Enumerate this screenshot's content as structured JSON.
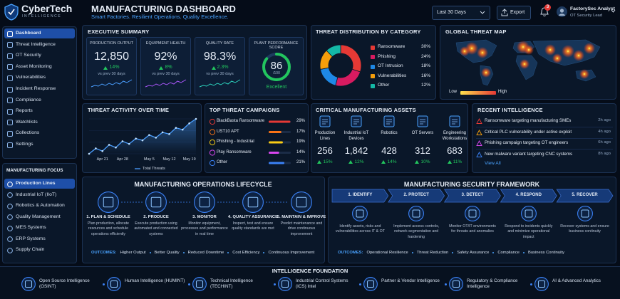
{
  "brand": {
    "name": "CyberTech",
    "tagline": "INTELLIGENCE"
  },
  "header": {
    "title": "MANUFACTURING DASHBOARD",
    "subtitle": "Smart Factories. Resilient Operations. Quality Excellence.",
    "range": "Last 30 Days",
    "export": "Export",
    "notifications": "3",
    "user_name": "FactorySec Analyst",
    "user_role": "OT Security Lead"
  },
  "nav": {
    "items": [
      "Dashboard",
      "Threat Intelligence",
      "OT Security",
      "Asset Monitoring",
      "Vulnerabilities",
      "Incident Response",
      "Compliance",
      "Reports",
      "Watchlists",
      "Collections",
      "Settings"
    ],
    "focus_title": "MANUFACTURING FOCUS",
    "focus_items": [
      "Production Lines",
      "Industrial IoT (IIoT)",
      "Robotics & Automation",
      "Quality Management",
      "MES Systems",
      "ERP Systems",
      "Supply Chain"
    ]
  },
  "executive_summary": {
    "title": "EXECUTIVE SUMMARY",
    "kpis": [
      {
        "label": "PRODUCTION OUTPUT",
        "value": "12,850",
        "change": "14%",
        "compare": "vs prev 30 days"
      },
      {
        "label": "EQUIPMENT HEALTH",
        "value": "92%",
        "change": "8%",
        "compare": "vs prev 30 days"
      },
      {
        "label": "QUALITY RATE",
        "value": "98.3%",
        "change": "2.3%",
        "compare": "vs prev 30 days"
      }
    ],
    "score": {
      "label": "PLANT PERFORMANCE SCORE",
      "value": 86,
      "max": 100,
      "max_label": "/100",
      "rating": "Excellent"
    }
  },
  "threat_distribution": {
    "title": "THREAT DISTRIBUTION BY CATEGORY",
    "type": "pie",
    "categories": [
      "Ransomware",
      "Phishing",
      "OT Intrusion",
      "Vulnerabilities",
      "Other"
    ],
    "values": [
      30,
      24,
      18,
      16,
      12
    ],
    "value_labels": [
      "30%",
      "24%",
      "18%",
      "16%",
      "12%"
    ],
    "colors": [
      "#e53935",
      "#d81b60",
      "#1e88e5",
      "#f59e0b",
      "#14b8a6"
    ]
  },
  "threat_map": {
    "title": "GLOBAL THREAT MAP",
    "legend_low": "Low",
    "legend_high": "High"
  },
  "threat_activity": {
    "title": "THREAT ACTIVITY OVER TIME",
    "type": "line",
    "categories": [
      null,
      null,
      "Apr 21",
      null,
      null,
      "Apr 28",
      null,
      null,
      null,
      "May 5",
      null,
      null,
      "May 12",
      null,
      null,
      "May 19",
      null
    ],
    "series": [
      {
        "name": "Total Threats",
        "color": "#4a9eff",
        "values": [
          14,
          20,
          17,
          24,
          21,
          28,
          25,
          31,
          29,
          35,
          32,
          38,
          36,
          43,
          41,
          48,
          53
        ]
      }
    ]
  },
  "campaigns": {
    "title": "TOP THREAT CAMPAIGNS",
    "type": "bar",
    "categories": [
      "BlackBasta Ransomware",
      "UST10 APT",
      "Phishing - Industrial",
      "Play Ransomware",
      "Other"
    ],
    "values": [
      29,
      17,
      19,
      14,
      21
    ],
    "value_labels": [
      "29%",
      "17%",
      "19%",
      "14%",
      "21%"
    ],
    "colors": [
      "#e53935",
      "#f97316",
      "#facc15",
      "#d946ef",
      "#3b82f6"
    ]
  },
  "assets": {
    "title": "CRITICAL MANUFACTURING ASSETS",
    "items": [
      {
        "name": "Production Lines",
        "count": "256",
        "change": "15%"
      },
      {
        "name": "Industrial IoT Devices",
        "count": "1,842",
        "change": "12%"
      },
      {
        "name": "Robotics",
        "count": "428",
        "change": "14%"
      },
      {
        "name": "OT Servers",
        "count": "312",
        "change": "10%"
      },
      {
        "name": "Engineering Workstations",
        "count": "683",
        "change": "11%"
      }
    ]
  },
  "recent_intelligence": {
    "title": "RECENT INTELLIGENCE",
    "items": [
      {
        "text": "Ransomware targeting manufacturing SMEs",
        "time": "2h ago"
      },
      {
        "text": "Critical PLC vulnerability under active exploit",
        "time": "4h ago"
      },
      {
        "text": "Phishing campaign targeting OT engineers",
        "time": "6h ago"
      },
      {
        "text": "New malware variant targeting CNC systems",
        "time": "8h ago"
      }
    ],
    "link": "View All"
  },
  "lifecycle": {
    "title": "MANUFACTURING OPERATIONS LIFECYCLE",
    "steps": [
      {
        "title": "1. PLAN & SCHEDULE",
        "text": "Plan production, allocate resources and schedule operations efficiently"
      },
      {
        "title": "2. PRODUCE",
        "text": "Execute production using automated and connected systems"
      },
      {
        "title": "3. MONITOR",
        "text": "Monitor equipment, processes and performance in real time"
      },
      {
        "title": "4. QUALITY ASSURANCE",
        "text": "Inspect, test and ensure quality standards are met"
      },
      {
        "title": "5. MAINTAIN & IMPROVE",
        "text": "Predict maintenance and drive continuous improvement"
      }
    ],
    "outcomes_label": "OUTCOMES:",
    "outcomes": [
      "Higher Output",
      "Better Quality",
      "Reduced Downtime",
      "Cost Efficiency",
      "Continuous Improvement"
    ]
  },
  "security_framework": {
    "title": "MANUFACTURING SECURITY FRAMEWORK",
    "steps": [
      {
        "title": "1. IDENTIFY",
        "text": "Identify assets, risks and vulnerabilities across IT & OT"
      },
      {
        "title": "2. PROTECT",
        "text": "Implement access controls, network segmentation and hardening"
      },
      {
        "title": "3. DETECT",
        "text": "Monitor OT/IT environments for threats and anomalies"
      },
      {
        "title": "4. RESPOND",
        "text": "Respond to incidents quickly and minimize operational impact"
      },
      {
        "title": "5. RECOVER",
        "text": "Recover systems and ensure business continuity"
      }
    ],
    "outcomes_label": "OUTCOMES:",
    "outcomes": [
      "Operational Resilience",
      "Threat Reduction",
      "Safety Assurance",
      "Compliance",
      "Business Continuity"
    ]
  },
  "foundation": {
    "title": "INTELLIGENCE FOUNDATION",
    "items": [
      "Open Source Intelligence (OSINT)",
      "Human Intelligence (HUMINT)",
      "Technical Intelligence (TECHINT)",
      "Industrial Control Systems (ICS) Intel",
      "Partner & Vendor Intelligence",
      "Regulatory & Compliance Intelligence",
      "AI & Advanced Analytics"
    ]
  }
}
